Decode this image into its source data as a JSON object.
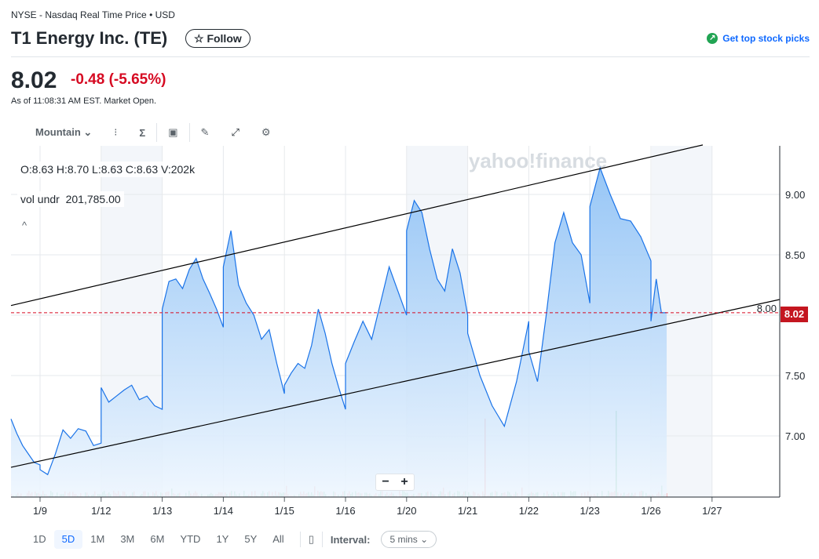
{
  "header": {
    "exchange": "NYSE - Nasdaq Real Time Price • USD",
    "title": "T1 Energy Inc. (TE)",
    "follow_label": "☆ Follow",
    "top_picks_label": "Get top stock picks"
  },
  "quote": {
    "price": "8.02",
    "change": "-0.48",
    "change_pct": "(-5.65%)",
    "as_of": "As of 11:08:31 AM EST. Market Open."
  },
  "toolbar": {
    "chart_type": "Mountain ⌄",
    "icons": [
      "compare-icon",
      "indicators-icon",
      "events-icon",
      "draw-icon",
      "expand-icon",
      "settings-icon"
    ]
  },
  "legend": {
    "ohlc": "O:8.63  H:8.70  L:8.63  C:8.63  V:202k",
    "vol_label": "vol undr",
    "vol_value": "201,785.00"
  },
  "watermark": "yahoo!finance",
  "zoom": {
    "minus": "−",
    "plus": "+"
  },
  "colors": {
    "line": "#1a73e8",
    "fill_top": "#8cc0f5",
    "down": "#d60a22",
    "volume_up": "#21a453",
    "volume_down": "#ef5d5d"
  },
  "chart_data": {
    "type": "area",
    "y_ticks": [
      "9.00",
      "8.50",
      "8.00",
      "7.50",
      "7.00"
    ],
    "ylim": [
      6.55,
      9.5
    ],
    "x_ticks": [
      "1/9",
      "1/12",
      "1/13",
      "1/14",
      "1/15",
      "1/16",
      "1/20",
      "1/21",
      "1/22",
      "1/23",
      "1/26",
      "1/27"
    ],
    "last_price": "8.02",
    "before_first_tick": [
      7.14,
      7.02,
      6.92,
      6.85,
      6.78,
      6.76
    ],
    "sessions": [
      {
        "date": "1/9",
        "prices": [
          6.72,
          6.68,
          6.85,
          7.05,
          6.98,
          7.06,
          7.04,
          6.92,
          6.94
        ]
      },
      {
        "date": "1/12",
        "prices": [
          7.4,
          7.28,
          7.33,
          7.38,
          7.42,
          7.3,
          7.33,
          7.25,
          7.22
        ]
      },
      {
        "date": "1/13",
        "prices": [
          8.05,
          8.28,
          8.3,
          8.22,
          8.38,
          8.47,
          8.3,
          8.18,
          8.05,
          7.9
        ]
      },
      {
        "date": "1/14",
        "prices": [
          8.4,
          8.7,
          8.25,
          8.1,
          8.0,
          7.8,
          7.88,
          7.6,
          7.35
        ]
      },
      {
        "date": "1/15",
        "prices": [
          7.42,
          7.52,
          7.6,
          7.56,
          7.75,
          8.05,
          7.85,
          7.6,
          7.4,
          7.22
        ]
      },
      {
        "date": "1/16",
        "prices": [
          7.6,
          7.78,
          7.95,
          7.8,
          8.1,
          8.4,
          8.2,
          8.0
        ]
      },
      {
        "date": "1/20",
        "prices": [
          8.7,
          8.95,
          8.85,
          8.55,
          8.3,
          8.2,
          8.55,
          8.35,
          8.0
        ]
      },
      {
        "date": "1/21",
        "prices": [
          7.85,
          7.5,
          7.25,
          7.08,
          7.45,
          7.95
        ]
      },
      {
        "date": "1/22",
        "prices": [
          7.7,
          7.45,
          8.0,
          8.6,
          8.85,
          8.6,
          8.5,
          8.1
        ]
      },
      {
        "date": "1/23",
        "prices": [
          8.9,
          9.22,
          9.0,
          8.8,
          8.78,
          8.65,
          8.45
        ]
      },
      {
        "date": "1/26",
        "prices": [
          7.95,
          8.3,
          8.02,
          8.02
        ]
      }
    ],
    "trendlines": [
      {
        "from": 8.08,
        "to": 9.41
      },
      {
        "from": 6.74,
        "to": 8.13
      }
    ]
  },
  "footer": {
    "ranges": [
      "1D",
      "5D",
      "1M",
      "3M",
      "6M",
      "YTD",
      "1Y",
      "5Y",
      "All"
    ],
    "active_range": "5D",
    "interval_label": "Interval:",
    "interval_value": "5 mins ⌄"
  }
}
